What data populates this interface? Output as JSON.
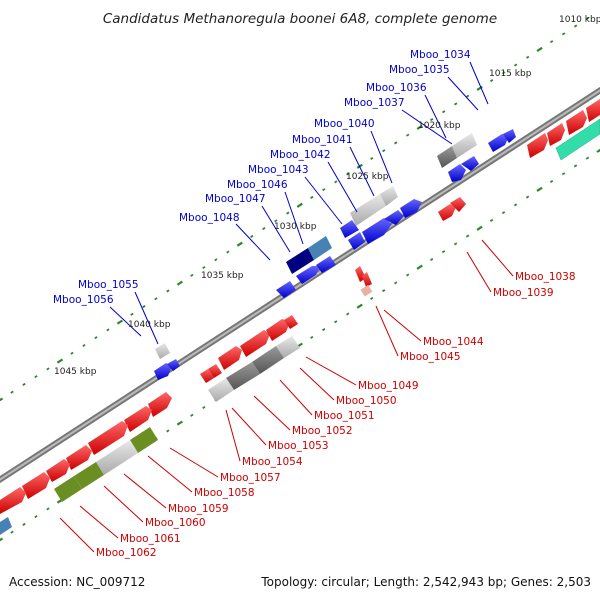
{
  "title": "Candidatus Methanoregula boonei 6A8, complete genome",
  "footer": {
    "accession": "Accession: NC_009712",
    "summary": "Topology: circular; Length: 2,542,943 bp; Genes: 2,503"
  },
  "kbp_labels": [
    "1010 kbp",
    "1015 kbp",
    "1020 kbp",
    "1025 kbp",
    "1030 kbp",
    "1035 kbp",
    "1040 kbp",
    "1045 kbp"
  ],
  "gene_labels_top": [
    "Mboo_1034",
    "Mboo_1035",
    "Mboo_1036",
    "Mboo_1037",
    "Mboo_1040",
    "Mboo_1041",
    "Mboo_1042",
    "Mboo_1043",
    "Mboo_1046",
    "Mboo_1047",
    "Mboo_1048",
    "Mboo_1055",
    "Mboo_1056"
  ],
  "gene_labels_bottom": [
    "Mboo_1038",
    "Mboo_1039",
    "Mboo_1044",
    "Mboo_1045",
    "Mboo_1049",
    "Mboo_1050",
    "Mboo_1051",
    "Mboo_1052",
    "Mboo_1053",
    "Mboo_1054",
    "Mboo_1057",
    "Mboo_1058",
    "Mboo_1059",
    "Mboo_1060",
    "Mboo_1061",
    "Mboo_1062"
  ],
  "colors": {
    "backbone": "#888888",
    "forward_gene": "#0000ee",
    "reverse_gene": "#ee0000",
    "rna": "#bbbbbb",
    "pseudo": "#666666",
    "tick": "#2a8a2a",
    "highlight_green": "#6b8e23",
    "highlight_teal": "#33ddaa",
    "highlight_light_blue": "#4682b4",
    "highlight_navy": "#000080"
  }
}
